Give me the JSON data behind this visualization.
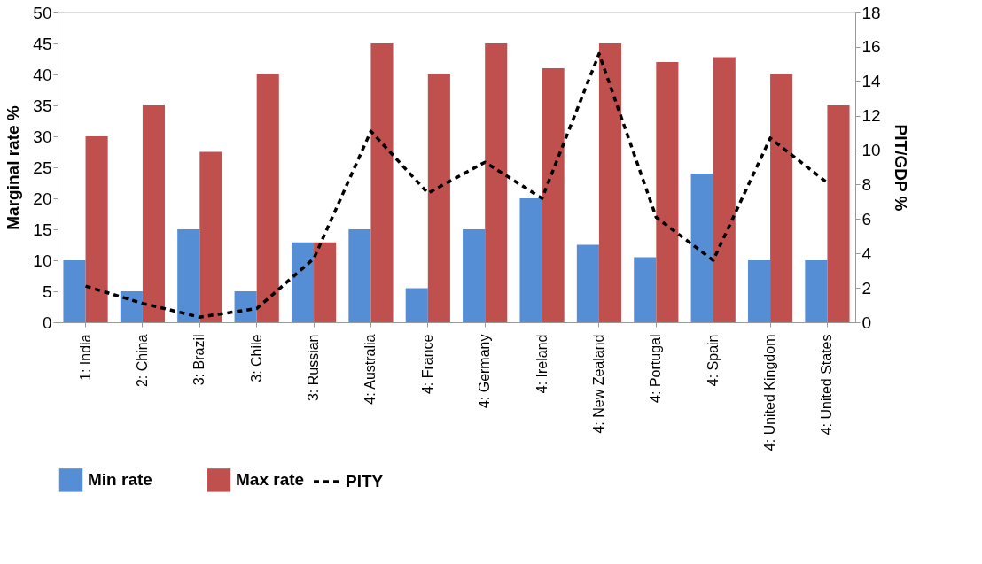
{
  "chart_data": {
    "type": "bar",
    "xlabel": null,
    "ylabel": "Marginal rate %",
    "y2label": "PIT/GDP %",
    "categories": [
      "1: India",
      "2: China",
      "3: Brazil",
      "3: Chile",
      "3: Russian",
      "4: Australia",
      "4: France",
      "4: Germany",
      "4: Ireland",
      "4: New Zealand",
      "4: Portugal",
      "4: Spain",
      "4: United Kingdom",
      "4: United States"
    ],
    "series": [
      {
        "name": "Min rate",
        "color": "#558ed5",
        "values": [
          10,
          5,
          15,
          5,
          12.9,
          15,
          5.5,
          15,
          20,
          12.5,
          10.5,
          24,
          10,
          10
        ]
      },
      {
        "name": "Max rate",
        "color": "#c0504d",
        "values": [
          30,
          35,
          27.5,
          40,
          12.9,
          45,
          40,
          45,
          41,
          45,
          42,
          42.8,
          40,
          35
        ]
      },
      {
        "name": "PITY",
        "type": "line",
        "axis": "y2",
        "color": "#000000",
        "line_style": "dashed",
        "values": [
          2.1,
          1.1,
          0.3,
          0.8,
          3.7,
          11.1,
          7.5,
          9.3,
          7.2,
          15.6,
          6.1,
          3.6,
          10.7,
          8.1
        ]
      }
    ],
    "ylim": [
      0,
      50
    ],
    "yticks": [
      0,
      5,
      10,
      15,
      20,
      25,
      30,
      35,
      40,
      45,
      50
    ],
    "y2lim": [
      0,
      18
    ],
    "y2ticks": [
      0,
      2,
      4,
      6,
      8,
      10,
      12,
      14,
      16,
      18
    ],
    "grid": false,
    "legend": "bottom"
  }
}
